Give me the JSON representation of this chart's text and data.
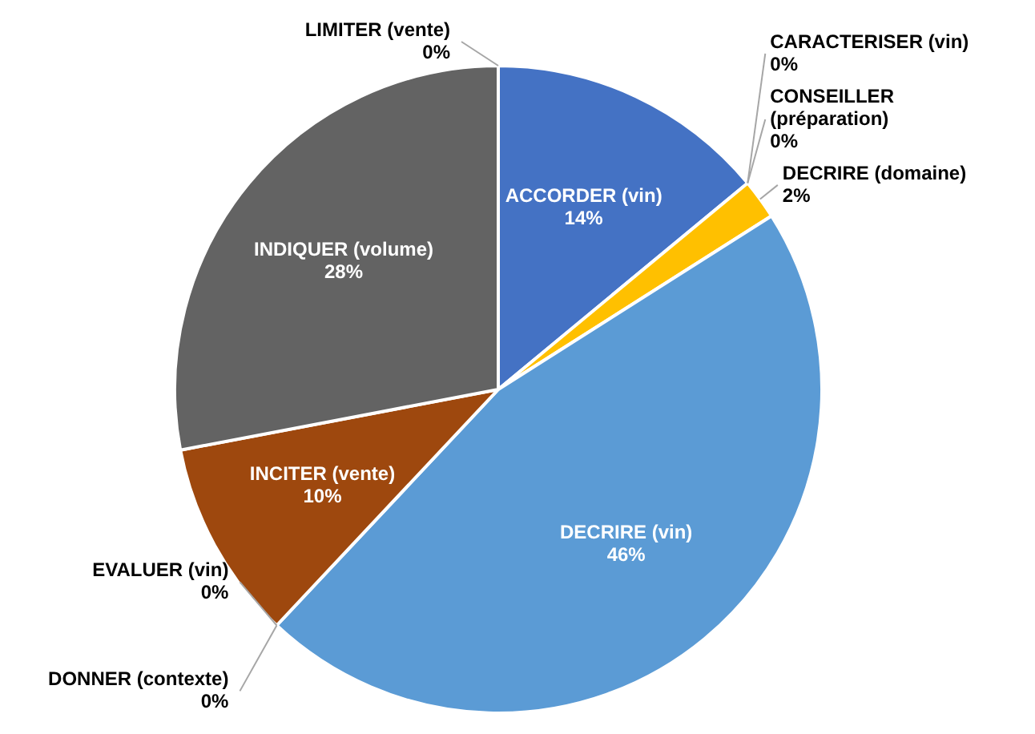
{
  "chart_data": {
    "type": "pie",
    "categories": [
      "ACCORDER (vin)",
      "CARACTERISER (vin)",
      "CONSEILLER (préparation)",
      "DECRIRE (domaine)",
      "DECRIRE (vin)",
      "DONNER (contexte)",
      "EVALUER (vin)",
      "INCITER (vente)",
      "INDIQUER (volume)",
      "LIMITER (vente)"
    ],
    "values": [
      14,
      0,
      0,
      2,
      46,
      0,
      0,
      10,
      28,
      0
    ],
    "value_labels": [
      "14%",
      "0%",
      "0%",
      "2%",
      "46%",
      "0%",
      "0%",
      "10%",
      "28%",
      "0%"
    ],
    "colors": [
      "#4472c4",
      "#ed7d31",
      "#a5a5a5",
      "#ffc000",
      "#5b9bd5",
      "#70ad47",
      "#264478",
      "#9e480e",
      "#636363",
      "#997300"
    ],
    "legend": false
  }
}
